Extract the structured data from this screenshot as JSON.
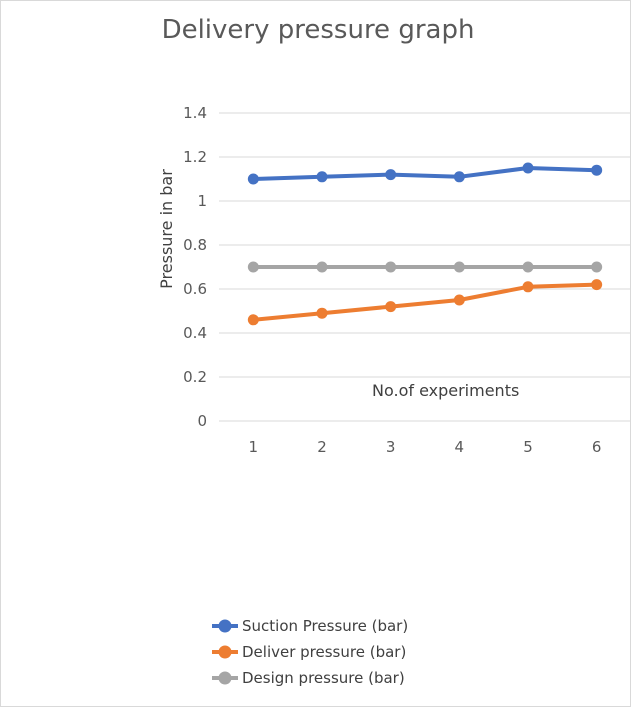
{
  "chart_data": {
    "type": "line",
    "title": "Delivery pressure graph",
    "xlabel": "No.of experiments",
    "ylabel": "Pressure in bar",
    "categories": [
      "1",
      "2",
      "3",
      "4",
      "5",
      "6"
    ],
    "yticks": [
      "0",
      "0.2",
      "0.4",
      "0.6",
      "0.8",
      "1",
      "1.2",
      "1.4"
    ],
    "ylim": [
      0,
      1.4
    ],
    "grid": true,
    "legend_position": "bottom",
    "series": [
      {
        "name": "Suction Pressure (bar)",
        "color": "#4472c4",
        "values": [
          1.1,
          1.11,
          1.12,
          1.11,
          1.15,
          1.14
        ]
      },
      {
        "name": "Deliver pressure (bar)",
        "color": "#ed7d31",
        "values": [
          0.46,
          0.49,
          0.52,
          0.55,
          0.61,
          0.62
        ]
      },
      {
        "name": "Design pressure (bar)",
        "color": "#a5a5a5",
        "values": [
          0.7,
          0.7,
          0.7,
          0.7,
          0.7,
          0.7
        ]
      }
    ]
  }
}
